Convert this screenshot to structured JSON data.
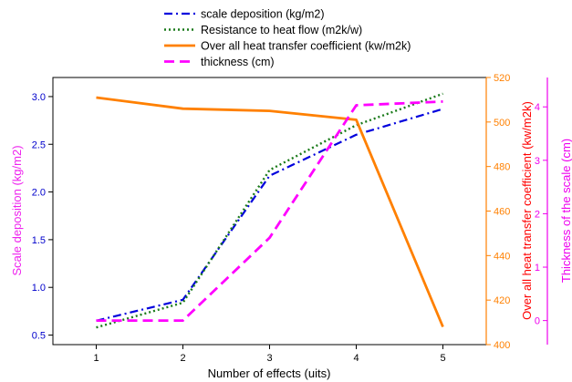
{
  "chart_data": {
    "type": "line",
    "xlabel": "Number of effects (uits)",
    "x": [
      1,
      2,
      3,
      4,
      5
    ],
    "xlim": [
      0.5,
      5.5
    ],
    "axes": {
      "left": {
        "label": "Scale deposition (kg/m2)",
        "ylim": [
          0.4,
          3.2
        ],
        "ticks": [
          0.5,
          1.0,
          1.5,
          2.0,
          2.5,
          3.0
        ],
        "tick_labels": [
          "0.5",
          "1.0",
          "1.5",
          "2.0",
          "2.5",
          "3.0"
        ],
        "color": "#0000cc",
        "label_color": "#ee22ee"
      },
      "right1": {
        "label": "Over all heat transfer coefficient (kw/m2k)",
        "ylim": [
          400,
          520
        ],
        "ticks": [
          400,
          420,
          440,
          460,
          480,
          500,
          520
        ],
        "tick_labels": [
          "400",
          "420",
          "440",
          "460",
          "480",
          "500",
          "520"
        ],
        "color": "#ff8000",
        "label_color": "#ff0000"
      },
      "right2": {
        "label": "Thickness of the scale (cm)",
        "ylim": [
          -0.45,
          4.55
        ],
        "ticks": [
          0,
          1,
          2,
          3,
          4
        ],
        "tick_labels": [
          "0",
          "1",
          "2",
          "3",
          "4"
        ],
        "color": "#ee00ee"
      }
    },
    "series": [
      {
        "name": "scale deposition (kg/m2)",
        "axis": "left",
        "values": [
          0.65,
          0.87,
          2.17,
          2.6,
          2.87
        ],
        "color": "#0000dd",
        "dash": "dashdot"
      },
      {
        "name": "Resistance to heat flow (m2k/w)",
        "axis": "left",
        "values": [
          0.58,
          0.84,
          2.23,
          2.7,
          3.03
        ],
        "color": "#1a7a1a",
        "dash": "dot"
      },
      {
        "name": "Over all heat transfer coefficient (kw/m2k)",
        "axis": "right1",
        "values": [
          511,
          506,
          505,
          501,
          408
        ],
        "color": "#ff8000",
        "dash": "solid"
      },
      {
        "name": "thickness (cm)",
        "axis": "right2",
        "values": [
          0.0,
          0.0,
          1.55,
          4.03,
          4.1
        ],
        "color": "#ff00ff",
        "dash": "dash"
      }
    ],
    "x_tick_labels": [
      "1",
      "2",
      "3",
      "4",
      "5"
    ],
    "legend": "top-center",
    "grid": false
  }
}
